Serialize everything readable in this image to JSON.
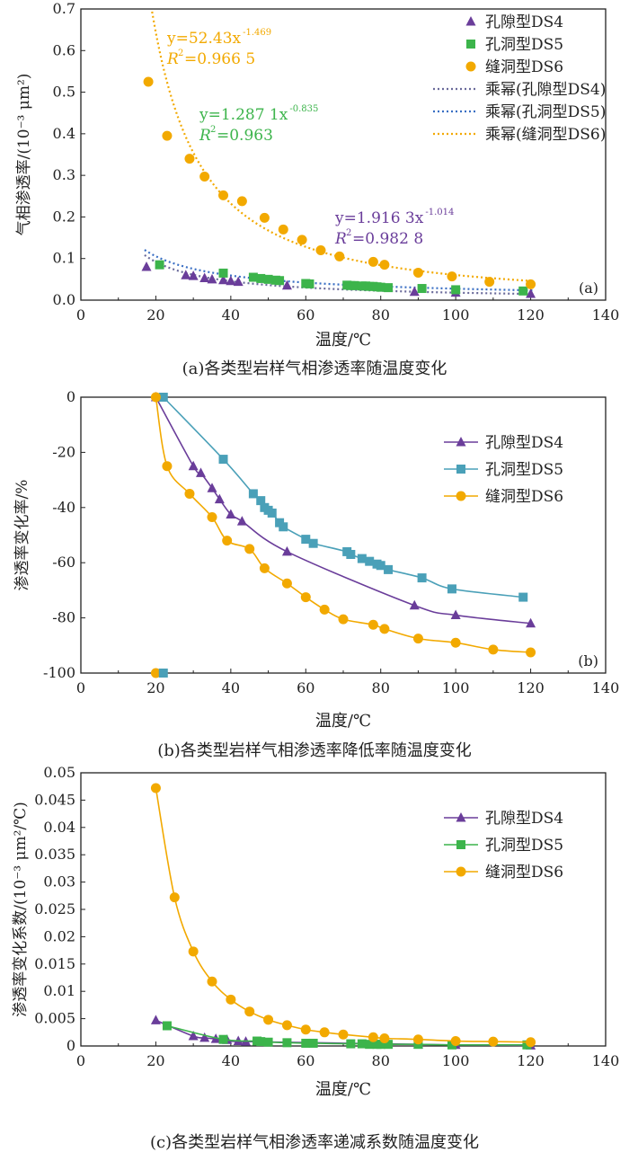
{
  "chart_data": [
    {
      "type": "scatter",
      "panel_label": "(a)",
      "caption": "(a)各类型岩样气相渗透率随温度变化",
      "xlabel": "温度/℃",
      "ylabel": "气相渗透率/(10⁻³ μm²)",
      "xlim": [
        0,
        140
      ],
      "ylim": [
        0,
        0.7
      ],
      "xticks": [
        "0",
        "20",
        "40",
        "60",
        "80",
        "100",
        "120",
        "140"
      ],
      "yticks": [
        "0.0",
        "0.1",
        "0.2",
        "0.3",
        "0.4",
        "0.5",
        "0.6",
        "0.7"
      ],
      "legend_position": "top-right",
      "series": [
        {
          "name": "孔隙型DS4",
          "marker": "triangle",
          "color": "#6a3d9a",
          "x": [
            17.5,
            28,
            30,
            33,
            35,
            38,
            40,
            42,
            55,
            89,
            100,
            120
          ],
          "y": [
            0.08,
            0.06,
            0.058,
            0.053,
            0.05,
            0.048,
            0.046,
            0.044,
            0.035,
            0.02,
            0.018,
            0.015
          ]
        },
        {
          "name": "孔洞型DS5",
          "marker": "square",
          "color": "#3cb44b",
          "x": [
            21,
            38,
            46,
            48,
            50,
            52,
            53,
            60,
            61,
            71,
            72,
            73,
            75,
            76,
            77,
            78,
            79,
            80,
            82,
            91,
            100,
            118
          ],
          "y": [
            0.085,
            0.065,
            0.055,
            0.052,
            0.05,
            0.048,
            0.047,
            0.04,
            0.039,
            0.036,
            0.035,
            0.035,
            0.034,
            0.034,
            0.033,
            0.033,
            0.032,
            0.031,
            0.03,
            0.028,
            0.025,
            0.022
          ]
        },
        {
          "name": "缝洞型DS6",
          "marker": "circle",
          "color": "#f2a900",
          "x": [
            18,
            23,
            29,
            33,
            38,
            43,
            49,
            54,
            59,
            64,
            69,
            78,
            81,
            90,
            99,
            109,
            120
          ],
          "y": [
            0.525,
            0.395,
            0.34,
            0.297,
            0.252,
            0.238,
            0.198,
            0.17,
            0.145,
            0.12,
            0.105,
            0.092,
            0.085,
            0.066,
            0.057,
            0.044,
            0.038
          ]
        }
      ],
      "fits": [
        {
          "name": "乘幂(孔隙型DS4)",
          "color": "#6a6a9a",
          "a": 1.9163,
          "b": -1.014,
          "equation": "y=1.916 3x",
          "exponent": "-1.014",
          "r2_label": "R",
          "r2_value": "=0.982 8"
        },
        {
          "name": "乘幂(孔洞型DS5)",
          "color": "#3a6fc4",
          "a": 1.2871,
          "b": -0.835,
          "equation": "y=1.287 1x",
          "exponent": "-0.835",
          "r2_label": "R",
          "r2_value": "=0.963"
        },
        {
          "name": "乘幂(缝洞型DS6)",
          "color": "#f2a900",
          "a": 52.43,
          "b": -1.469,
          "equation": "y=52.43x",
          "exponent": "-1.469",
          "r2_label": "R",
          "r2_value": "=0.966 5"
        }
      ]
    },
    {
      "type": "line",
      "panel_label": "(b)",
      "caption": "(b)各类型岩样气相渗透率降低率随温度变化",
      "xlabel": "温度/℃",
      "ylabel": "渗透率变化率/%",
      "xlim": [
        0,
        140
      ],
      "ylim": [
        -100,
        0
      ],
      "xticks": [
        "0",
        "20",
        "40",
        "60",
        "80",
        "100",
        "120",
        "140"
      ],
      "yticks": [
        "-100",
        "-80",
        "-60",
        "-40",
        "-20",
        "0"
      ],
      "legend_position": "top-right",
      "series": [
        {
          "name": "孔隙型DS4",
          "marker": "triangle",
          "color": "#6a3d9a",
          "x": [
            20,
            30,
            32,
            35,
            37,
            40,
            43,
            55,
            89,
            100,
            120
          ],
          "y": [
            0,
            -25,
            -27.5,
            -33,
            -37,
            -42.5,
            -45,
            -56,
            -75.5,
            -79,
            -82
          ]
        },
        {
          "name": "孔洞型DS5",
          "marker": "square",
          "color": "#4aa0b8",
          "x": [
            22,
            38,
            46,
            48,
            49,
            50,
            51,
            53,
            54,
            60,
            62,
            71,
            72,
            75,
            77,
            79,
            80,
            82,
            91,
            99,
            118
          ],
          "y": [
            0,
            -22.5,
            -35,
            -37.5,
            -40,
            -41,
            -42,
            -45.5,
            -47,
            -51.5,
            -53,
            -56,
            -57,
            -58.5,
            -59.5,
            -60.5,
            -61,
            -62.5,
            -65.5,
            -69.5,
            -72.5
          ]
        },
        {
          "name": "缝洞型DS6",
          "marker": "circle",
          "color": "#f2a900",
          "x": [
            20,
            23,
            29,
            35,
            39,
            45,
            49,
            55,
            60,
            65,
            70,
            78,
            81,
            90,
            100,
            110,
            120
          ],
          "y": [
            0,
            -25,
            -35,
            -43.5,
            -52,
            -55,
            -62,
            -67.5,
            -72.5,
            -77,
            -80.5,
            -82.5,
            -84,
            -87.5,
            -89,
            -91.5,
            -92.5
          ]
        }
      ],
      "stray_points": [
        {
          "series": "缝洞型DS6",
          "x": 20,
          "y": -100
        },
        {
          "series": "孔洞型DS5",
          "x": 22,
          "y": -100
        }
      ]
    },
    {
      "type": "line",
      "panel_label": "",
      "caption": "(c)各类型岩样气相渗透率递减系数随温度变化",
      "xlabel": "温度/℃",
      "ylabel": "渗透率变化系数/(10⁻³ μm²/℃)",
      "xlim": [
        0,
        140
      ],
      "ylim": [
        0,
        0.05
      ],
      "xticks": [
        "0",
        "20",
        "40",
        "60",
        "80",
        "100",
        "120",
        "140"
      ],
      "yticks": [
        "0",
        "0.005",
        "0.01",
        "0.015",
        "0.02",
        "0.025",
        "0.03",
        "0.035",
        "0.04",
        "0.045",
        "0.05"
      ],
      "legend_position": "top-right",
      "series": [
        {
          "name": "孔隙型DS4",
          "marker": "triangle",
          "color": "#6a3d9a",
          "x": [
            20,
            30,
            33,
            36,
            39,
            42,
            44,
            90,
            100,
            120
          ],
          "y": [
            0.0047,
            0.0018,
            0.0015,
            0.0013,
            0.0011,
            0.0009,
            0.0008,
            0.0003,
            0.0002,
            0.0001
          ]
        },
        {
          "name": "孔洞型DS5",
          "marker": "square",
          "color": "#3cb44b",
          "x": [
            23,
            38,
            47,
            48,
            50,
            55,
            60,
            62,
            72,
            75,
            77,
            79,
            80,
            82,
            90,
            99,
            119
          ],
          "y": [
            0.0037,
            0.0012,
            0.0009,
            0.0008,
            0.0007,
            0.0006,
            0.0005,
            0.0005,
            0.0004,
            0.0004,
            0.0003,
            0.0003,
            0.0003,
            0.0003,
            0.0003,
            0.0002,
            0.0002
          ]
        },
        {
          "name": "缝洞型DS6",
          "marker": "circle",
          "color": "#f2a900",
          "x": [
            20,
            25,
            30,
            35,
            40,
            45,
            50,
            55,
            60,
            65,
            70,
            78,
            81,
            90,
            100,
            110,
            120
          ],
          "y": [
            0.0472,
            0.0272,
            0.0173,
            0.0118,
            0.0085,
            0.0063,
            0.0048,
            0.0038,
            0.003,
            0.0025,
            0.0021,
            0.0016,
            0.0014,
            0.0012,
            0.0009,
            0.0008,
            0.0007
          ]
        }
      ]
    }
  ]
}
